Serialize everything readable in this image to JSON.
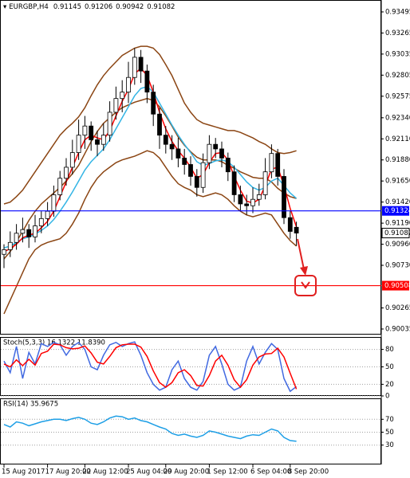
{
  "chart_data": [
    {
      "type": "candlestick",
      "title": "EURGBP,H4",
      "categories": [
        "15 Aug 2017",
        null,
        null,
        null,
        null,
        null,
        null,
        "17 Aug 20:00",
        null,
        null,
        null,
        null,
        null,
        "22 Aug 12:00",
        null,
        null,
        null,
        null,
        null,
        null,
        "25 Aug 04:00",
        null,
        null,
        null,
        null,
        null,
        "29 Aug 20:00",
        null,
        null,
        null,
        null,
        null,
        null,
        "1 Sep 12:00",
        null,
        null,
        null,
        null,
        null,
        null,
        "6 Sep 04:00",
        null,
        null,
        null,
        null,
        null,
        "8 Sep 20:00",
        null
      ],
      "open": [
        0.9085,
        0.909,
        0.9098,
        0.9108,
        0.9112,
        0.9104,
        0.9116,
        0.9124,
        0.9132,
        0.915,
        0.9168,
        0.918,
        0.9196,
        0.9215,
        0.9225,
        0.921,
        0.9205,
        0.9215,
        0.924,
        0.9255,
        0.9262,
        0.9278,
        0.93,
        0.9285,
        0.9262,
        0.9238,
        0.9215,
        0.9205,
        0.92,
        0.919,
        0.9183,
        0.917,
        0.9158,
        0.9185,
        0.9205,
        0.92,
        0.919,
        0.9175,
        0.915,
        0.914,
        0.9138,
        0.9145,
        0.915,
        0.9175,
        0.9195,
        0.917,
        0.9125,
        0.91145
      ],
      "high": [
        0.9096,
        0.911,
        0.9118,
        0.9125,
        0.9118,
        0.9128,
        0.9132,
        0.9142,
        0.916,
        0.9176,
        0.919,
        0.921,
        0.9232,
        0.9236,
        0.923,
        0.922,
        0.9228,
        0.9252,
        0.9268,
        0.9275,
        0.9295,
        0.931,
        0.9308,
        0.9292,
        0.927,
        0.9245,
        0.9225,
        0.9215,
        0.9212,
        0.92,
        0.9192,
        0.9178,
        0.9195,
        0.9215,
        0.9212,
        0.9208,
        0.9196,
        0.9182,
        0.916,
        0.915,
        0.9158,
        0.9162,
        0.919,
        0.9205,
        0.92,
        0.9178,
        0.9132,
        0.91206
      ],
      "low": [
        0.907,
        0.9082,
        0.909,
        0.9098,
        0.9092,
        0.9098,
        0.9108,
        0.9116,
        0.9126,
        0.9144,
        0.916,
        0.9172,
        0.9188,
        0.92,
        0.9198,
        0.9192,
        0.9198,
        0.9208,
        0.9232,
        0.924,
        0.925,
        0.927,
        0.9272,
        0.925,
        0.9225,
        0.92,
        0.9195,
        0.9188,
        0.918,
        0.9172,
        0.916,
        0.9148,
        0.9152,
        0.9178,
        0.919,
        0.918,
        0.9165,
        0.9142,
        0.9132,
        0.9128,
        0.913,
        0.9138,
        0.9145,
        0.9168,
        0.916,
        0.9118,
        0.9102,
        0.90942
      ],
      "close": [
        0.909,
        0.9098,
        0.9108,
        0.9112,
        0.9104,
        0.9116,
        0.9124,
        0.9132,
        0.915,
        0.9168,
        0.918,
        0.9196,
        0.9215,
        0.9225,
        0.921,
        0.9205,
        0.9215,
        0.924,
        0.9255,
        0.9262,
        0.9278,
        0.93,
        0.9285,
        0.9262,
        0.9238,
        0.9215,
        0.9205,
        0.92,
        0.919,
        0.9183,
        0.917,
        0.9158,
        0.9185,
        0.9205,
        0.92,
        0.919,
        0.9175,
        0.915,
        0.914,
        0.9138,
        0.9145,
        0.915,
        0.9175,
        0.9195,
        0.917,
        0.9125,
        0.911,
        0.91082
      ],
      "up_color": "#ffffff",
      "down_color": "#000000",
      "series": [
        {
          "color": "#8b4513",
          "values": [
            0.914,
            0.9142,
            0.9148,
            0.9155,
            0.9165,
            0.9175,
            0.9185,
            0.9195,
            0.9205,
            0.9215,
            0.9222,
            0.9228,
            0.9235,
            0.9245,
            0.9258,
            0.927,
            0.928,
            0.9288,
            0.9295,
            0.9302,
            0.9306,
            0.931,
            0.9312,
            0.9312,
            0.931,
            0.9303,
            0.9292,
            0.928,
            0.9265,
            0.925,
            0.924,
            0.9232,
            0.9228,
            0.9226,
            0.9224,
            0.9222,
            0.922,
            0.922,
            0.9218,
            0.9215,
            0.9212,
            0.9208,
            0.9205,
            0.92,
            0.9196,
            0.9195,
            0.9196,
            0.9198
          ]
        },
        {
          "color": "#8b4513",
          "values": [
            0.908,
            0.9088,
            0.9099,
            0.911,
            0.9122,
            0.9132,
            0.914,
            0.9146,
            0.9152,
            0.9158,
            0.9165,
            0.9173,
            0.9182,
            0.9195,
            0.9208,
            0.9219,
            0.9228,
            0.9234,
            0.924,
            0.9245,
            0.9248,
            0.9251,
            0.9253,
            0.9255,
            0.9253,
            0.9246,
            0.9236,
            0.9225,
            0.9213,
            0.9204,
            0.9197,
            0.9191,
            0.9188,
            0.9188,
            0.9188,
            0.9186,
            0.9182,
            0.9179,
            0.9175,
            0.9172,
            0.9169,
            0.9168,
            0.9168,
            0.9164,
            0.9157,
            0.9152,
            0.9148,
            0.9146
          ]
        },
        {
          "color": "#8b4513",
          "values": [
            0.902,
            0.9035,
            0.905,
            0.9065,
            0.908,
            0.909,
            0.9095,
            0.9098,
            0.91,
            0.9102,
            0.9108,
            0.9118,
            0.913,
            0.9145,
            0.9158,
            0.9168,
            0.9175,
            0.918,
            0.9185,
            0.9188,
            0.919,
            0.9192,
            0.9195,
            0.9198,
            0.9196,
            0.919,
            0.918,
            0.917,
            0.9162,
            0.9158,
            0.9155,
            0.915,
            0.9148,
            0.915,
            0.9152,
            0.915,
            0.9145,
            0.9138,
            0.9132,
            0.9128,
            0.9126,
            0.9128,
            0.913,
            0.9128,
            0.9118,
            0.9108,
            0.91,
            0.9094
          ]
        },
        {
          "color": "#33b5e5",
          "values": [
            0.9092,
            0.9094,
            0.9098,
            0.9102,
            0.9104,
            0.9107,
            0.9111,
            0.9116,
            0.9123,
            0.9132,
            0.9142,
            0.9153,
            0.9165,
            0.9177,
            0.9186,
            0.9193,
            0.92,
            0.921,
            0.9222,
            0.9234,
            0.9246,
            0.9258,
            0.9266,
            0.9268,
            0.9262,
            0.925,
            0.9238,
            0.9226,
            0.9215,
            0.9205,
            0.9196,
            0.9186,
            0.9182,
            0.9184,
            0.9187,
            0.9188,
            0.9186,
            0.918,
            0.9172,
            0.9164,
            0.9158,
            0.9155,
            0.9158,
            0.9165,
            0.9168,
            0.916,
            0.9152,
            0.9146
          ]
        },
        {
          "color": "#ff0000",
          "values": [
            0.9088,
            0.9091,
            0.9096,
            0.9103,
            0.9106,
            0.9108,
            0.9114,
            0.9121,
            0.9132,
            0.9148,
            0.9164,
            0.918,
            0.9196,
            0.921,
            0.9215,
            0.9212,
            0.921,
            0.922,
            0.9236,
            0.9252,
            0.9265,
            0.9282,
            0.9288,
            0.928,
            0.9262,
            0.924,
            0.9222,
            0.9208,
            0.9198,
            0.919,
            0.918,
            0.9168,
            0.9172,
            0.9185,
            0.9195,
            0.9196,
            0.9188,
            0.917,
            0.9155,
            0.9143,
            0.9141,
            0.9145,
            0.916,
            0.9178,
            0.918,
            0.916,
            0.9135,
            0.9115
          ]
        }
      ],
      "hlines": [
        {
          "value": 0.91324,
          "color": "#0000ff"
        },
        {
          "value": 0.90508,
          "color": "#ff0000"
        }
      ],
      "ylim": [
        0.89974,
        0.93625
      ],
      "yticks": [
        0.93495,
        0.93265,
        0.93035,
        0.92805,
        0.92575,
        {
          "value": 0.9234,
          "label": "0.92340"
        },
        {
          "value": 0.9211,
          "label": "0.92110"
        },
        {
          "value": 0.9188,
          "label": "0.91880"
        },
        {
          "value": 0.9165,
          "label": "0.91650"
        },
        {
          "value": 0.9142,
          "label": "0.91420"
        },
        {
          "value": 0.9119,
          "label": "0.91190"
        },
        {
          "value": 0.9096,
          "label": "0.90960"
        },
        {
          "value": 0.9073,
          "label": "0.90730"
        },
        0.90265,
        0.90035
      ]
    },
    {
      "type": "line",
      "title": "Stoch(5,3,3) 16.1322 11.8390",
      "series": [
        {
          "color": "#4169e1",
          "values": [
            60,
            40,
            85,
            30,
            75,
            55,
            90,
            85,
            92,
            88,
            70,
            85,
            92,
            80,
            50,
            45,
            70,
            88,
            92,
            85,
            90,
            93,
            70,
            40,
            20,
            10,
            15,
            45,
            60,
            30,
            15,
            10,
            25,
            70,
            85,
            55,
            20,
            10,
            15,
            60,
            85,
            55,
            75,
            90,
            80,
            30,
            8,
            16.1322
          ]
        },
        {
          "color": "#ff0000",
          "values": [
            55,
            50,
            62,
            52,
            63,
            53,
            73,
            77,
            89,
            88,
            83,
            81,
            82,
            86,
            74,
            58,
            55,
            68,
            83,
            88,
            89,
            89,
            84,
            68,
            43,
            23,
            15,
            23,
            40,
            45,
            35,
            18,
            17,
            35,
            60,
            70,
            53,
            28,
            15,
            28,
            53,
            67,
            72,
            73,
            82,
            67,
            39,
            11.839
          ]
        }
      ],
      "ylim": [
        0,
        100
      ],
      "yticks": [
        80,
        50,
        20,
        0
      ]
    },
    {
      "type": "line",
      "title": "RSI(14) 35.9675",
      "series": [
        {
          "color": "#1e9fe6",
          "values": [
            62,
            58,
            66,
            64,
            60,
            63,
            66,
            68,
            70,
            70,
            68,
            71,
            73,
            70,
            64,
            62,
            66,
            72,
            75,
            74,
            70,
            72,
            68,
            66,
            62,
            58,
            55,
            48,
            45,
            47,
            44,
            42,
            45,
            52,
            50,
            47,
            44,
            42,
            40,
            44,
            46,
            45,
            50,
            55,
            52,
            42,
            37,
            35.9675
          ]
        }
      ],
      "ylim": [
        0,
        100
      ],
      "yticks": [
        70,
        50,
        30
      ]
    }
  ]
}
